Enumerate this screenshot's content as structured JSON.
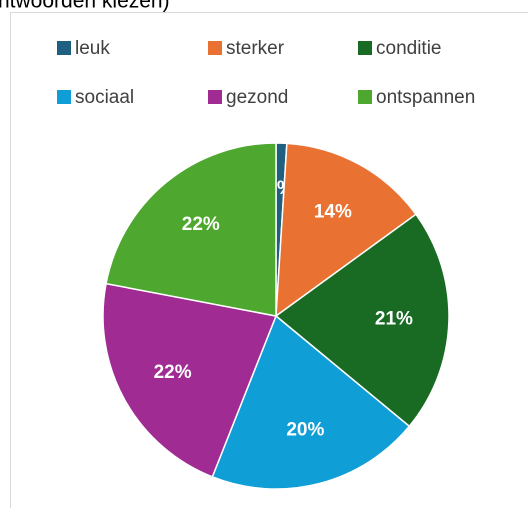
{
  "chart_data": {
    "type": "pie",
    "title": "ntwoorden kiezen)",
    "categories": [
      "leuk",
      "sterker",
      "conditie",
      "sociaal",
      "gezond",
      "ontspannen"
    ],
    "values": [
      1,
      14,
      21,
      20,
      22,
      22
    ],
    "value_labels": [
      "1%",
      "14%",
      "21%",
      "20%",
      "22%",
      "22%"
    ],
    "colors": [
      "#1f5f7f",
      "#e97132",
      "#196b24",
      "#0f9ed5",
      "#a02b93",
      "#4ea72e"
    ],
    "legend": "top"
  }
}
